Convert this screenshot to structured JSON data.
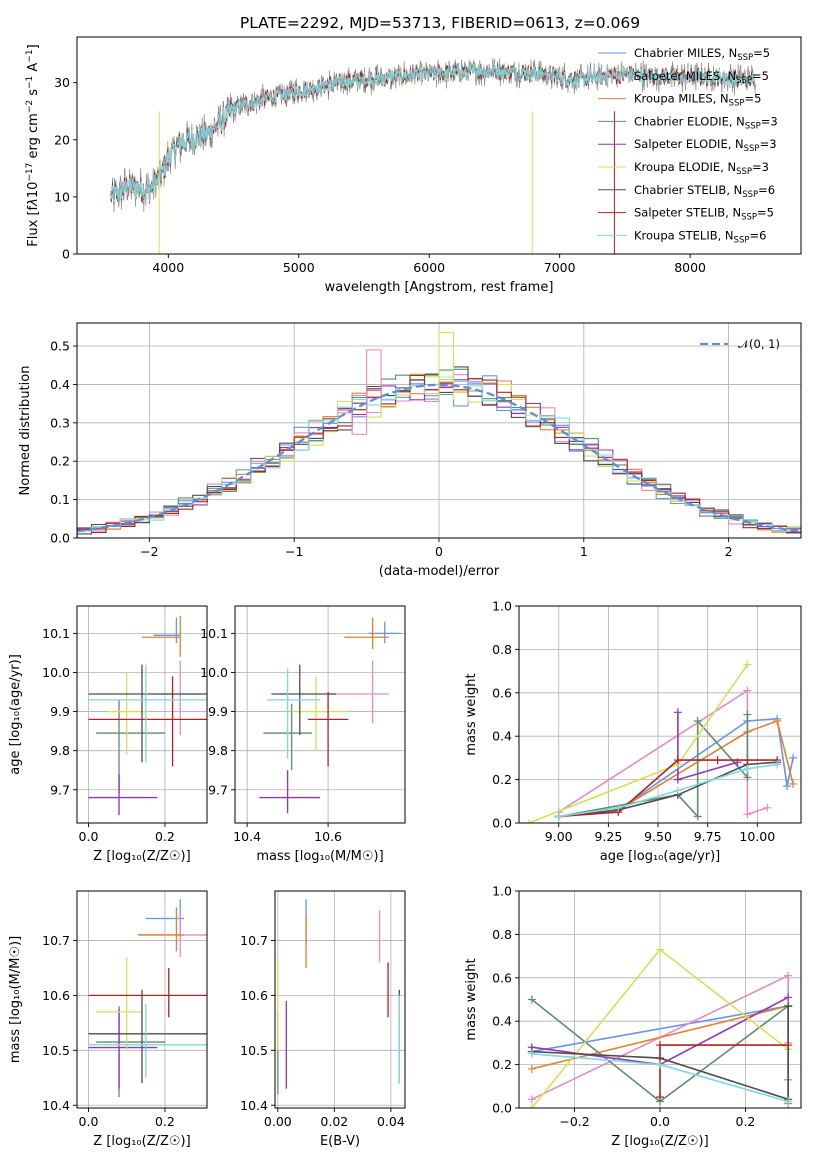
{
  "figure": {
    "title": "PLATE=2292, MJD=53713, FIBERID=0613, z=0.069"
  },
  "colors": {
    "chabrier_miles": "#6495ed",
    "salpeter_miles": "#e78ac3",
    "kroupa_miles": "#e5812e",
    "chabrier_elodie": "#5e8f6a",
    "salpeter_elodie": "#9534b8",
    "kroupa_elodie": "#d4e157",
    "chabrier_stelib": "#4d4d4d",
    "salpeter_stelib": "#b22222",
    "kroupa_stelib": "#7fd8e0",
    "data_grey": "#808080",
    "normal_curve": "#5b8de6"
  },
  "legend": [
    {
      "key": "chabrier_miles",
      "main": "Chabrier MILES, N",
      "sub": "SSP",
      "tail": "=5"
    },
    {
      "key": "salpeter_miles",
      "main": "Salpeter MILES, N",
      "sub": "SSP",
      "tail": "=5"
    },
    {
      "key": "kroupa_miles",
      "main": "Kroupa MILES, N",
      "sub": "SSP",
      "tail": "=5"
    },
    {
      "key": "chabrier_elodie",
      "main": "Chabrier ELODIE, N",
      "sub": "SSP",
      "tail": "=3"
    },
    {
      "key": "salpeter_elodie",
      "main": "Salpeter ELODIE, N",
      "sub": "SSP",
      "tail": "=3"
    },
    {
      "key": "kroupa_elodie",
      "main": "Kroupa ELODIE, N",
      "sub": "SSP",
      "tail": "=3"
    },
    {
      "key": "chabrier_stelib",
      "main": "Chabrier STELIB, N",
      "sub": "SSP",
      "tail": "=6"
    },
    {
      "key": "salpeter_stelib",
      "main": "Salpeter STELIB, N",
      "sub": "SSP",
      "tail": "=5"
    },
    {
      "key": "kroupa_stelib",
      "main": "Kroupa STELIB, N",
      "sub": "SSP",
      "tail": "=6"
    }
  ],
  "chart_data": [
    {
      "id": "spectrum",
      "type": "line",
      "xlabel": "wavelength [Angstrom, rest frame]",
      "ylabel_parts": [
        "Flux [f",
        "λ",
        "10",
        "−17",
        " erg cm",
        "−2",
        " s",
        "−1",
        " A",
        "−1",
        "]"
      ],
      "xlim": [
        3300,
        8850
      ],
      "ylim": [
        0,
        38
      ],
      "xticks": [
        4000,
        5000,
        6000,
        7000,
        8000
      ],
      "yticks": [
        0,
        10,
        20,
        30
      ],
      "continuum": [
        [
          3560,
          10
        ],
        [
          3700,
          12
        ],
        [
          3850,
          11
        ],
        [
          3950,
          14
        ],
        [
          4000,
          17
        ],
        [
          4100,
          19.5
        ],
        [
          4300,
          21
        ],
        [
          4400,
          23
        ],
        [
          4500,
          25.5
        ],
        [
          4700,
          27
        ],
        [
          4900,
          28
        ],
        [
          5100,
          29
        ],
        [
          5300,
          30
        ],
        [
          5500,
          30.5
        ],
        [
          5700,
          31
        ],
        [
          6000,
          31.5
        ],
        [
          6300,
          32
        ],
        [
          6600,
          32
        ],
        [
          6900,
          31.5
        ],
        [
          7100,
          30.5
        ],
        [
          7300,
          31
        ],
        [
          7500,
          31.5
        ],
        [
          7800,
          31
        ],
        [
          8100,
          31
        ],
        [
          8500,
          30.5
        ]
      ]
    },
    {
      "id": "residual_hist",
      "type": "step",
      "xlabel": "(data-model)/error",
      "ylabel": "Normed distribution",
      "xlim": [
        -2.5,
        2.5
      ],
      "ylim": [
        0,
        0.56
      ],
      "xticks": [
        -2,
        -1,
        0,
        1,
        2
      ],
      "yticks": [
        0,
        0.1,
        0.2,
        0.3,
        0.4,
        0.5
      ],
      "curve_legend": "𝒩(0, 1)",
      "highlight_bins": [
        {
          "series": "salpeter_miles",
          "x": -0.45,
          "y": 0.49
        },
        {
          "series": "kroupa_elodie",
          "x": 0.05,
          "y": 0.535
        },
        {
          "series": "salpeter_miles",
          "x": -0.55,
          "y": 0.27
        }
      ]
    },
    {
      "id": "age_vs_Z",
      "type": "errorbar",
      "xlabel": "Z [log₁₀(Z/Z☉)]",
      "ylabel": "age  [log₁₀(age/yr)]",
      "xlim": [
        -0.03,
        0.31
      ],
      "ylim": [
        9.615,
        10.17
      ],
      "xticks": [
        0.0,
        0.2
      ],
      "yticks": [
        9.7,
        9.8,
        9.9,
        10.0,
        10.1
      ],
      "points": [
        {
          "series": "chabrier_miles",
          "x": 0.23,
          "xerr": [
            0.17,
            0.24
          ],
          "y": 10.095,
          "yerr": [
            10.075,
            10.14
          ]
        },
        {
          "series": "salpeter_miles",
          "x": 0.24,
          "xerr": [
            0.17,
            0.3
          ],
          "y": 9.945,
          "yerr": [
            9.84,
            10.03
          ]
        },
        {
          "series": "kroupa_miles",
          "x": 0.24,
          "xerr": [
            0.14,
            0.24
          ],
          "y": 10.09,
          "yerr": [
            10.04,
            10.145
          ]
        },
        {
          "series": "chabrier_elodie",
          "x": 0.08,
          "xerr": [
            0.02,
            0.2
          ],
          "y": 9.845,
          "yerr": [
            9.69,
            9.93
          ]
        },
        {
          "series": "salpeter_elodie",
          "x": 0.08,
          "xerr": [
            0.0,
            0.18
          ],
          "y": 9.68,
          "yerr": [
            9.635,
            9.74
          ]
        },
        {
          "series": "kroupa_elodie",
          "x": 0.1,
          "xerr": [
            0.05,
            0.15
          ],
          "y": 9.9,
          "yerr": [
            9.79,
            10.0
          ]
        },
        {
          "series": "chabrier_stelib",
          "x": 0.14,
          "xerr": [
            0.0,
            0.31
          ],
          "y": 9.945,
          "yerr": [
            9.77,
            10.02
          ]
        },
        {
          "series": "salpeter_stelib",
          "x": 0.22,
          "xerr": [
            0.0,
            0.31
          ],
          "y": 9.88,
          "yerr": [
            9.76,
            9.99
          ]
        },
        {
          "series": "kroupa_stelib",
          "x": 0.15,
          "xerr": [
            0.0,
            0.31
          ],
          "y": 9.93,
          "yerr": [
            9.77,
            10.02
          ]
        }
      ]
    },
    {
      "id": "age_vs_mass",
      "type": "errorbar",
      "xlabel": "mass [log₁₀(M/M☉)]",
      "xlim": [
        10.37,
        10.79
      ],
      "ylim": [
        9.615,
        10.17
      ],
      "xticks": [
        10.4,
        10.6
      ],
      "yticks": [
        9.7,
        9.8,
        9.9,
        10.0,
        10.1
      ],
      "points": [
        {
          "series": "chabrier_miles",
          "x": 10.74,
          "xerr": [
            10.7,
            10.78
          ],
          "y": 10.1,
          "yerr": [
            10.075,
            10.13
          ]
        },
        {
          "series": "salpeter_miles",
          "x": 10.71,
          "xerr": [
            10.6,
            10.75
          ],
          "y": 9.945,
          "yerr": [
            9.87,
            10.03
          ]
        },
        {
          "series": "kroupa_miles",
          "x": 10.71,
          "xerr": [
            10.64,
            10.75
          ],
          "y": 10.09,
          "yerr": [
            10.06,
            10.14
          ]
        },
        {
          "series": "chabrier_elodie",
          "x": 10.51,
          "xerr": [
            10.44,
            10.56
          ],
          "y": 9.845,
          "yerr": [
            9.75,
            9.92
          ]
        },
        {
          "series": "salpeter_elodie",
          "x": 10.5,
          "xerr": [
            10.43,
            10.58
          ],
          "y": 9.68,
          "yerr": [
            9.64,
            9.75
          ]
        },
        {
          "series": "kroupa_elodie",
          "x": 10.57,
          "xerr": [
            10.51,
            10.65
          ],
          "y": 9.9,
          "yerr": [
            9.8,
            9.99
          ]
        },
        {
          "series": "chabrier_stelib",
          "x": 10.53,
          "xerr": [
            10.46,
            10.62
          ],
          "y": 9.945,
          "yerr": [
            9.84,
            10.02
          ]
        },
        {
          "series": "salpeter_stelib",
          "x": 10.6,
          "xerr": [
            10.55,
            10.65
          ],
          "y": 9.88,
          "yerr": [
            9.76,
            9.95
          ]
        },
        {
          "series": "kroupa_stelib",
          "x": 10.5,
          "xerr": [
            10.45,
            10.58
          ],
          "y": 9.93,
          "yerr": [
            9.78,
            10.01
          ]
        }
      ]
    },
    {
      "id": "weight_vs_age",
      "type": "line",
      "xlabel": "age  [log₁₀(age/yr)]",
      "ylabel": "mass weight",
      "xlim": [
        8.8,
        10.22
      ],
      "ylim": [
        0,
        1
      ],
      "xticks": [
        9.0,
        9.25,
        9.5,
        9.75,
        10.0
      ],
      "yticks": [
        0.0,
        0.2,
        0.4,
        0.6,
        0.8,
        1.0
      ],
      "series": [
        {
          "key": "chabrier_miles",
          "x": [
            9.0,
            9.3,
            9.95,
            10.1,
            10.15,
            10.18
          ],
          "y": [
            0.03,
            0.06,
            0.47,
            0.48,
            0.17,
            0.3
          ]
        },
        {
          "key": "salpeter_miles",
          "x": [
            9.0,
            9.95,
            9.95,
            10.05
          ],
          "y": [
            0.05,
            0.61,
            0.04,
            0.07
          ]
        },
        {
          "key": "kroupa_miles",
          "x": [
            9.0,
            9.3,
            9.95,
            10.1,
            10.18
          ],
          "y": [
            0.03,
            0.06,
            0.42,
            0.47,
            0.18
          ]
        },
        {
          "key": "chabrier_elodie",
          "x": [
            9.0,
            9.6,
            9.7,
            9.7,
            9.95,
            9.95
          ],
          "y": [
            0.03,
            0.13,
            0.03,
            0.47,
            0.21,
            0.5
          ]
        },
        {
          "key": "salpeter_elodie",
          "x": [
            9.6,
            9.6,
            9.9
          ],
          "y": [
            0.51,
            0.2,
            0.28
          ]
        },
        {
          "key": "kroupa_elodie",
          "x": [
            8.85,
            9.6,
            9.95
          ],
          "y": [
            0.0,
            0.27,
            0.73
          ]
        },
        {
          "key": "chabrier_stelib",
          "x": [
            9.0,
            9.3,
            9.6,
            9.95,
            10.1
          ],
          "y": [
            0.03,
            0.06,
            0.13,
            0.27,
            0.28
          ]
        },
        {
          "key": "salpeter_stelib",
          "x": [
            9.0,
            9.3,
            9.6,
            9.8,
            10.1
          ],
          "y": [
            0.03,
            0.05,
            0.29,
            0.29,
            0.29
          ]
        },
        {
          "key": "kroupa_stelib",
          "x": [
            9.0,
            9.3,
            9.6,
            9.95,
            10.1
          ],
          "y": [
            0.03,
            0.07,
            0.15,
            0.25,
            0.27
          ]
        }
      ]
    },
    {
      "id": "mass_vs_Z",
      "type": "errorbar",
      "xlabel": "Z [log₁₀(Z/Z☉)]",
      "ylabel": "mass [log₁₀(M/M☉)]",
      "xlim": [
        -0.03,
        0.31
      ],
      "ylim": [
        10.395,
        10.79
      ],
      "xticks": [
        0.0,
        0.2
      ],
      "yticks": [
        10.4,
        10.5,
        10.6,
        10.7
      ],
      "points": [
        {
          "series": "chabrier_miles",
          "x": 0.24,
          "xerr": [
            0.15,
            0.25
          ],
          "y": 10.74,
          "yerr": [
            10.7,
            10.775
          ]
        },
        {
          "series": "salpeter_miles",
          "x": 0.24,
          "xerr": [
            0.13,
            0.31
          ],
          "y": 10.71,
          "yerr": [
            10.67,
            10.75
          ]
        },
        {
          "series": "kroupa_miles",
          "x": 0.23,
          "xerr": [
            0.13,
            0.25
          ],
          "y": 10.71,
          "yerr": [
            10.68,
            10.76
          ]
        },
        {
          "series": "chabrier_elodie",
          "x": 0.08,
          "xerr": [
            0.02,
            0.2
          ],
          "y": 10.515,
          "yerr": [
            10.415,
            10.58
          ]
        },
        {
          "series": "salpeter_elodie",
          "x": 0.08,
          "xerr": [
            0.0,
            0.18
          ],
          "y": 10.505,
          "yerr": [
            10.43,
            10.575
          ]
        },
        {
          "series": "kroupa_elodie",
          "x": 0.1,
          "xerr": [
            0.02,
            0.14
          ],
          "y": 10.57,
          "yerr": [
            10.5,
            10.67
          ]
        },
        {
          "series": "chabrier_stelib",
          "x": 0.14,
          "xerr": [
            0.0,
            0.31
          ],
          "y": 10.53,
          "yerr": [
            10.44,
            10.61
          ]
        },
        {
          "series": "salpeter_stelib",
          "x": 0.21,
          "xerr": [
            0.0,
            0.31
          ],
          "y": 10.6,
          "yerr": [
            10.56,
            10.65
          ]
        },
        {
          "series": "kroupa_stelib",
          "x": 0.15,
          "xerr": [
            0.0,
            0.31
          ],
          "y": 10.51,
          "yerr": [
            10.45,
            10.585
          ]
        }
      ]
    },
    {
      "id": "mass_vs_ebv",
      "type": "errorbar",
      "xlabel": "E(B-V)",
      "xlim": [
        -0.001,
        0.045
      ],
      "ylim": [
        10.395,
        10.79
      ],
      "xticks": [
        0.0,
        0.02,
        0.04
      ],
      "yticks": [
        10.4,
        10.5,
        10.6,
        10.7
      ],
      "points": [
        {
          "series": "chabrier_miles",
          "x": 0.01,
          "y": 10.74,
          "yerr": [
            10.69,
            10.775
          ]
        },
        {
          "series": "salpeter_miles",
          "x": 0.036,
          "y": 10.71,
          "yerr": [
            10.66,
            10.755
          ]
        },
        {
          "series": "kroupa_miles",
          "x": 0.01,
          "y": 10.71,
          "yerr": [
            10.65,
            10.745
          ]
        },
        {
          "series": "chabrier_elodie",
          "x": 0.0,
          "y": 10.515,
          "yerr": [
            10.42,
            10.57
          ]
        },
        {
          "series": "salpeter_elodie",
          "x": 0.003,
          "y": 10.505,
          "yerr": [
            10.43,
            10.59
          ]
        },
        {
          "series": "kroupa_elodie",
          "x": 0.0,
          "y": 10.57,
          "yerr": [
            10.5,
            10.67
          ]
        },
        {
          "series": "chabrier_stelib",
          "x": 0.043,
          "y": 10.53,
          "yerr": [
            10.44,
            10.61
          ]
        },
        {
          "series": "salpeter_stelib",
          "x": 0.039,
          "y": 10.6,
          "yerr": [
            10.56,
            10.66
          ]
        },
        {
          "series": "kroupa_stelib",
          "x": 0.043,
          "y": 10.51,
          "yerr": [
            10.44,
            10.6
          ]
        }
      ]
    },
    {
      "id": "weight_vs_Z",
      "type": "line",
      "xlabel": "Z [log₁₀(Z/Z☉)]",
      "ylabel": "mass weight",
      "xlim": [
        -0.33,
        0.33
      ],
      "ylim": [
        0,
        1
      ],
      "xticks": [
        -0.2,
        0.0,
        0.2
      ],
      "yticks": [
        0.0,
        0.2,
        0.4,
        0.6,
        0.8,
        1.0
      ],
      "series": [
        {
          "key": "chabrier_miles",
          "x": [
            -0.3,
            0.3,
            0.3,
            0.3
          ],
          "y": [
            0.26,
            0.47,
            0.13,
            0.03
          ]
        },
        {
          "key": "salpeter_miles",
          "x": [
            -0.3,
            0.3,
            0.3
          ],
          "y": [
            0.04,
            0.61,
            0.3
          ]
        },
        {
          "key": "kroupa_miles",
          "x": [
            -0.3,
            0.3,
            0.3
          ],
          "y": [
            0.18,
            0.47,
            0.02
          ]
        },
        {
          "key": "chabrier_elodie",
          "x": [
            -0.3,
            0.0,
            0.3
          ],
          "y": [
            0.5,
            0.03,
            0.47
          ]
        },
        {
          "key": "salpeter_elodie",
          "x": [
            -0.3,
            0.0,
            0.3
          ],
          "y": [
            0.28,
            0.2,
            0.51
          ]
        },
        {
          "key": "kroupa_elodie",
          "x": [
            -0.3,
            0.0,
            0.3
          ],
          "y": [
            0.0,
            0.73,
            0.27
          ]
        },
        {
          "key": "chabrier_stelib",
          "x": [
            -0.3,
            0.0,
            0.3,
            0.3
          ],
          "y": [
            0.26,
            0.23,
            0.04,
            0.47
          ]
        },
        {
          "key": "salpeter_stelib",
          "x": [
            0.0,
            0.0,
            0.3
          ],
          "y": [
            0.05,
            0.29,
            0.29
          ]
        },
        {
          "key": "kroupa_stelib",
          "x": [
            -0.3,
            0.0,
            0.3
          ],
          "y": [
            0.25,
            0.2,
            0.03
          ]
        }
      ]
    }
  ]
}
